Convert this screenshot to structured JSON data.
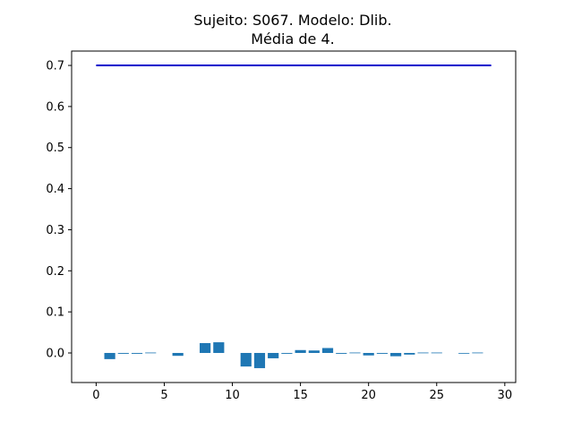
{
  "chart_data": {
    "type": "bar",
    "title_line1": "Sujeito: S067. Modelo: Dlib.",
    "title_line2": "Média de 4.",
    "xlabel": "",
    "ylabel": "",
    "xlim": [
      -1.8,
      30.8
    ],
    "ylim": [
      -0.072,
      0.735
    ],
    "x_ticks": [
      0,
      5,
      10,
      15,
      20,
      25,
      30
    ],
    "y_ticks": [
      0.0,
      0.1,
      0.2,
      0.3,
      0.4,
      0.5,
      0.6,
      0.7
    ],
    "y_tick_labels": [
      "0.0",
      "0.1",
      "0.2",
      "0.3",
      "0.4",
      "0.5",
      "0.6",
      "0.7"
    ],
    "grid": false,
    "bar_width": 0.8,
    "bar_color": "#1f77b4",
    "bars": [
      {
        "x": 1,
        "value": -0.015
      },
      {
        "x": 2,
        "value": -0.002
      },
      {
        "x": 3,
        "value": -0.002
      },
      {
        "x": 4,
        "value": 0.001
      },
      {
        "x": 6,
        "value": -0.007
      },
      {
        "x": 8,
        "value": 0.024
      },
      {
        "x": 9,
        "value": 0.026
      },
      {
        "x": 11,
        "value": -0.033
      },
      {
        "x": 12,
        "value": -0.037
      },
      {
        "x": 13,
        "value": -0.013
      },
      {
        "x": 14,
        "value": -0.002
      },
      {
        "x": 15,
        "value": 0.007
      },
      {
        "x": 16,
        "value": 0.006
      },
      {
        "x": 17,
        "value": 0.012
      },
      {
        "x": 18,
        "value": -0.002
      },
      {
        "x": 19,
        "value": 0.001
      },
      {
        "x": 20,
        "value": -0.006
      },
      {
        "x": 21,
        "value": -0.002
      },
      {
        "x": 22,
        "value": -0.008
      },
      {
        "x": 23,
        "value": -0.004
      },
      {
        "x": 24,
        "value": 0.001
      },
      {
        "x": 25,
        "value": 0.001
      },
      {
        "x": 27,
        "value": -0.001
      },
      {
        "x": 28,
        "value": 0.001
      }
    ],
    "reference_line": {
      "x": [
        0,
        29
      ],
      "y": 0.7,
      "color": "#0000cc"
    }
  }
}
